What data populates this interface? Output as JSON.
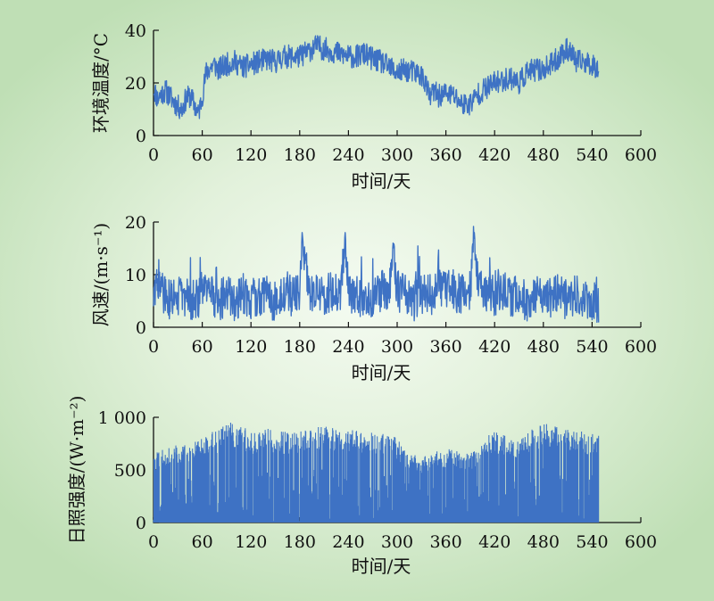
{
  "chart_data": [
    {
      "type": "line",
      "ylabel": "环境温度/°C",
      "xlabel": "时间/天",
      "xlim": [
        0,
        600
      ],
      "ylim": [
        0,
        40
      ],
      "x_ticks": [
        "0",
        "60",
        "120",
        "180",
        "240",
        "300",
        "360",
        "420",
        "480",
        "540",
        "600"
      ],
      "y_ticks": [
        "0",
        "20",
        "40"
      ],
      "color": "#3e72c4",
      "series": [
        {
          "x": [
            0,
            5,
            10,
            15,
            20,
            25,
            30,
            35,
            40,
            45,
            50,
            55,
            60,
            65,
            70,
            75,
            80,
            90,
            100,
            110,
            120,
            130,
            140,
            150,
            160,
            170,
            180,
            190,
            200,
            210,
            220,
            230,
            240,
            250,
            260,
            270,
            280,
            290,
            300,
            310,
            320,
            330,
            335,
            340,
            345,
            350,
            360,
            370,
            380,
            390,
            400,
            410,
            420,
            430,
            440,
            450,
            460,
            470,
            480,
            490,
            500,
            510,
            515,
            520,
            530,
            540,
            545,
            548
          ],
          "y": [
            18,
            14,
            16,
            17,
            15,
            13,
            11,
            10,
            14,
            15,
            12,
            8,
            15,
            24,
            26,
            27,
            25,
            27,
            28,
            26,
            27,
            28,
            29,
            28,
            30,
            30,
            30,
            32,
            34,
            33,
            32,
            31,
            30,
            30,
            31,
            29,
            28,
            26,
            24,
            25,
            24,
            23,
            20,
            14,
            17,
            15,
            16,
            15,
            12,
            12,
            16,
            18,
            20,
            21,
            22,
            20,
            24,
            25,
            25,
            27,
            30,
            33,
            31,
            28,
            28,
            27,
            26,
            26
          ]
        }
      ]
    },
    {
      "type": "line",
      "ylabel": "风速/(m·s⁻¹)",
      "xlabel": "时间/天",
      "xlim": [
        0,
        600
      ],
      "ylim": [
        0,
        20
      ],
      "x_ticks": [
        "0",
        "60",
        "120",
        "180",
        "240",
        "300",
        "360",
        "420",
        "480",
        "540",
        "600"
      ],
      "y_ticks": [
        "0",
        "10",
        "20"
      ],
      "color": "#3e72c4",
      "series": [
        {
          "x": [
            0,
            10,
            20,
            30,
            40,
            50,
            60,
            70,
            80,
            90,
            100,
            110,
            120,
            130,
            140,
            150,
            160,
            170,
            180,
            183,
            190,
            200,
            210,
            220,
            230,
            236,
            240,
            250,
            260,
            270,
            280,
            290,
            295,
            300,
            310,
            320,
            330,
            340,
            350,
            360,
            370,
            380,
            390,
            395,
            400,
            410,
            420,
            430,
            440,
            450,
            460,
            470,
            480,
            490,
            500,
            510,
            520,
            530,
            540,
            548
          ],
          "y": [
            6,
            7,
            5,
            6,
            6,
            5,
            6,
            7,
            5,
            6,
            5,
            6,
            5,
            6,
            6,
            5,
            6,
            6,
            7,
            18,
            7,
            6,
            6,
            7,
            6,
            18,
            7,
            6,
            5,
            6,
            7,
            6,
            16,
            7,
            6,
            5,
            6,
            6,
            7,
            7,
            7,
            6,
            7,
            18,
            7,
            6,
            6,
            7,
            6,
            6,
            5,
            6,
            5,
            6,
            6,
            5,
            6,
            5,
            5,
            4
          ]
        }
      ]
    },
    {
      "type": "area",
      "ylabel": "日照强度/(W·m⁻²)",
      "xlabel": "时间/天",
      "xlim": [
        0,
        600
      ],
      "ylim": [
        0,
        1000
      ],
      "x_ticks": [
        "0",
        "60",
        "120",
        "180",
        "240",
        "300",
        "360",
        "420",
        "480",
        "540",
        "600"
      ],
      "y_ticks": [
        "0",
        "500",
        "1 000"
      ],
      "color": "#3e72c4",
      "series": [
        {
          "x": [
            0,
            10,
            20,
            30,
            40,
            50,
            60,
            70,
            80,
            90,
            100,
            110,
            120,
            130,
            140,
            150,
            160,
            170,
            180,
            190,
            200,
            210,
            220,
            230,
            240,
            250,
            260,
            270,
            280,
            290,
            300,
            310,
            320,
            330,
            340,
            350,
            360,
            370,
            380,
            390,
            400,
            410,
            420,
            430,
            440,
            450,
            460,
            470,
            480,
            490,
            500,
            510,
            520,
            530,
            540,
            548
          ],
          "y": [
            650,
            700,
            720,
            740,
            760,
            780,
            820,
            860,
            880,
            960,
            940,
            920,
            860,
            880,
            900,
            880,
            860,
            870,
            880,
            900,
            920,
            920,
            900,
            890,
            880,
            880,
            870,
            860,
            850,
            840,
            800,
            700,
            650,
            620,
            650,
            680,
            700,
            700,
            680,
            660,
            720,
            820,
            880,
            860,
            840,
            820,
            880,
            900,
            940,
            950,
            920,
            900,
            880,
            860,
            850,
            840
          ]
        }
      ]
    }
  ]
}
